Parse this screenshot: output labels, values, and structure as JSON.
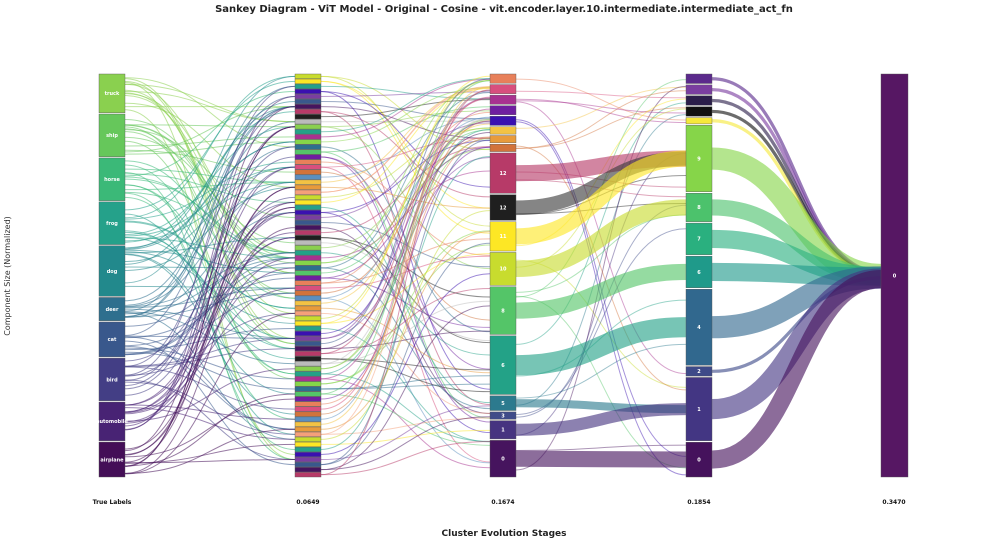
{
  "chart_data": {
    "type": "sankey",
    "title": "Sankey Diagram - ViT Model - Original - Cosine - vit.encoder.layer.10.intermediate.intermediate_act_fn",
    "xlabel": "Cluster Evolution Stages",
    "ylabel": "Component Size (Normalized)",
    "stages": [
      "True Labels",
      "0.0649",
      "0.1674",
      "0.1854",
      "0.3470"
    ],
    "true_labels": [
      {
        "label": "truck",
        "color": "#8ad04f"
      },
      {
        "label": "ship",
        "color": "#66c75b"
      },
      {
        "label": "horse",
        "color": "#3bb978"
      },
      {
        "label": "frog",
        "color": "#25a18a"
      },
      {
        "label": "dog",
        "color": "#22898c"
      },
      {
        "label": "deer",
        "color": "#2e6f8e"
      },
      {
        "label": "cat",
        "color": "#39588c"
      },
      {
        "label": "bird",
        "color": "#433e85"
      },
      {
        "label": "automobile",
        "color": "#482374"
      },
      {
        "label": "airplane",
        "color": "#440e57"
      }
    ],
    "stage1_cluster_count": 80,
    "stage2_clusters": [
      {
        "label": "",
        "color": "#e8805a"
      },
      {
        "label": "",
        "color": "#d84f7e"
      },
      {
        "label": "",
        "color": "#a83290"
      },
      {
        "label": "",
        "color": "#6f1fa0"
      },
      {
        "label": "",
        "color": "#3a10b0"
      },
      {
        "label": "",
        "color": "#f3c344"
      },
      {
        "label": "",
        "color": "#e89b3c"
      },
      {
        "label": "",
        "color": "#d2733b"
      },
      {
        "label": "12",
        "color": "#b73a68"
      },
      {
        "label": "12",
        "color": "#1f1f1f"
      },
      {
        "label": "11",
        "color": "#fde725"
      },
      {
        "label": "10",
        "color": "#c8dc2e"
      },
      {
        "label": "8",
        "color": "#54c568"
      },
      {
        "label": "6",
        "color": "#23a287"
      },
      {
        "label": "5",
        "color": "#2c7a8e"
      },
      {
        "label": "3",
        "color": "#3f4b89"
      },
      {
        "label": "1",
        "color": "#463480"
      },
      {
        "label": "0",
        "color": "#46145e"
      }
    ],
    "stage3_clusters": [
      {
        "label": "",
        "color": "#5b2a8c"
      },
      {
        "label": "",
        "color": "#7a3ea0"
      },
      {
        "label": "",
        "color": "#2b1e4a"
      },
      {
        "label": "",
        "color": "#111111"
      },
      {
        "label": "",
        "color": "#f5e83b"
      },
      {
        "label": "9",
        "color": "#86d549"
      },
      {
        "label": "8",
        "color": "#4cc26c"
      },
      {
        "label": "7",
        "color": "#2ab07f"
      },
      {
        "label": "6",
        "color": "#1f9a8a"
      },
      {
        "label": "4",
        "color": "#31688e"
      },
      {
        "label": "2",
        "color": "#3e4a89"
      },
      {
        "label": "1",
        "color": "#433683"
      },
      {
        "label": "0",
        "color": "#45125c"
      }
    ],
    "stage4_clusters": [
      {
        "label": "0",
        "color": "#561763"
      }
    ],
    "sizes": {
      "true_labels": [
        10,
        11,
        11,
        11,
        13,
        6,
        9,
        11,
        10,
        9
      ],
      "stage2": [
        2.5,
        2.5,
        2.5,
        2.5,
        2.5,
        2,
        2,
        2,
        11,
        7,
        8,
        9,
        13,
        16,
        4,
        2,
        5,
        10
      ],
      "stage3": [
        3,
        3,
        3,
        3,
        2,
        21,
        9,
        10,
        10,
        24,
        3,
        20,
        11
      ],
      "stage4": [
        100
      ]
    },
    "flows_stage2_to_stage3": [
      {
        "from": 8,
        "to": 5,
        "value": 4.0,
        "color": "#b73a68"
      },
      {
        "from": 9,
        "to": 5,
        "value": 3.5,
        "color": "#3a3a3a"
      },
      {
        "from": 10,
        "to": 5,
        "value": 4.0,
        "color": "#fde725"
      },
      {
        "from": 11,
        "to": 6,
        "value": 4.0,
        "color": "#c8dc2e"
      },
      {
        "from": 12,
        "to": 8,
        "value": 4.0,
        "color": "#54c568"
      },
      {
        "from": 13,
        "to": 9,
        "value": 5.0,
        "color": "#23a287"
      },
      {
        "from": 14,
        "to": 11,
        "value": 2.0,
        "color": "#2c7a8e"
      },
      {
        "from": 16,
        "to": 11,
        "value": 3.0,
        "color": "#463480"
      },
      {
        "from": 17,
        "to": 12,
        "value": 4.0,
        "color": "#46145e"
      }
    ],
    "flows_stage3_to_stage4": [
      {
        "from": 0,
        "value": 0.8,
        "color": "#5b2a8c"
      },
      {
        "from": 1,
        "value": 0.8,
        "color": "#7a3ea0"
      },
      {
        "from": 2,
        "value": 0.8,
        "color": "#2b1e4a"
      },
      {
        "from": 3,
        "value": 0.8,
        "color": "#111111"
      },
      {
        "from": 4,
        "value": 0.8,
        "color": "#f5e83b"
      },
      {
        "from": 5,
        "value": 5.5,
        "color": "#86d549"
      },
      {
        "from": 6,
        "value": 4.0,
        "color": "#4cc26c"
      },
      {
        "from": 7,
        "value": 4.5,
        "color": "#2ab07f"
      },
      {
        "from": 8,
        "value": 4.5,
        "color": "#1f9a8a"
      },
      {
        "from": 9,
        "value": 5.5,
        "color": "#31688e"
      },
      {
        "from": 10,
        "value": 0.8,
        "color": "#3e4a89"
      },
      {
        "from": 11,
        "value": 5.0,
        "color": "#433683"
      },
      {
        "from": 12,
        "value": 4.5,
        "color": "#45125c"
      }
    ]
  }
}
